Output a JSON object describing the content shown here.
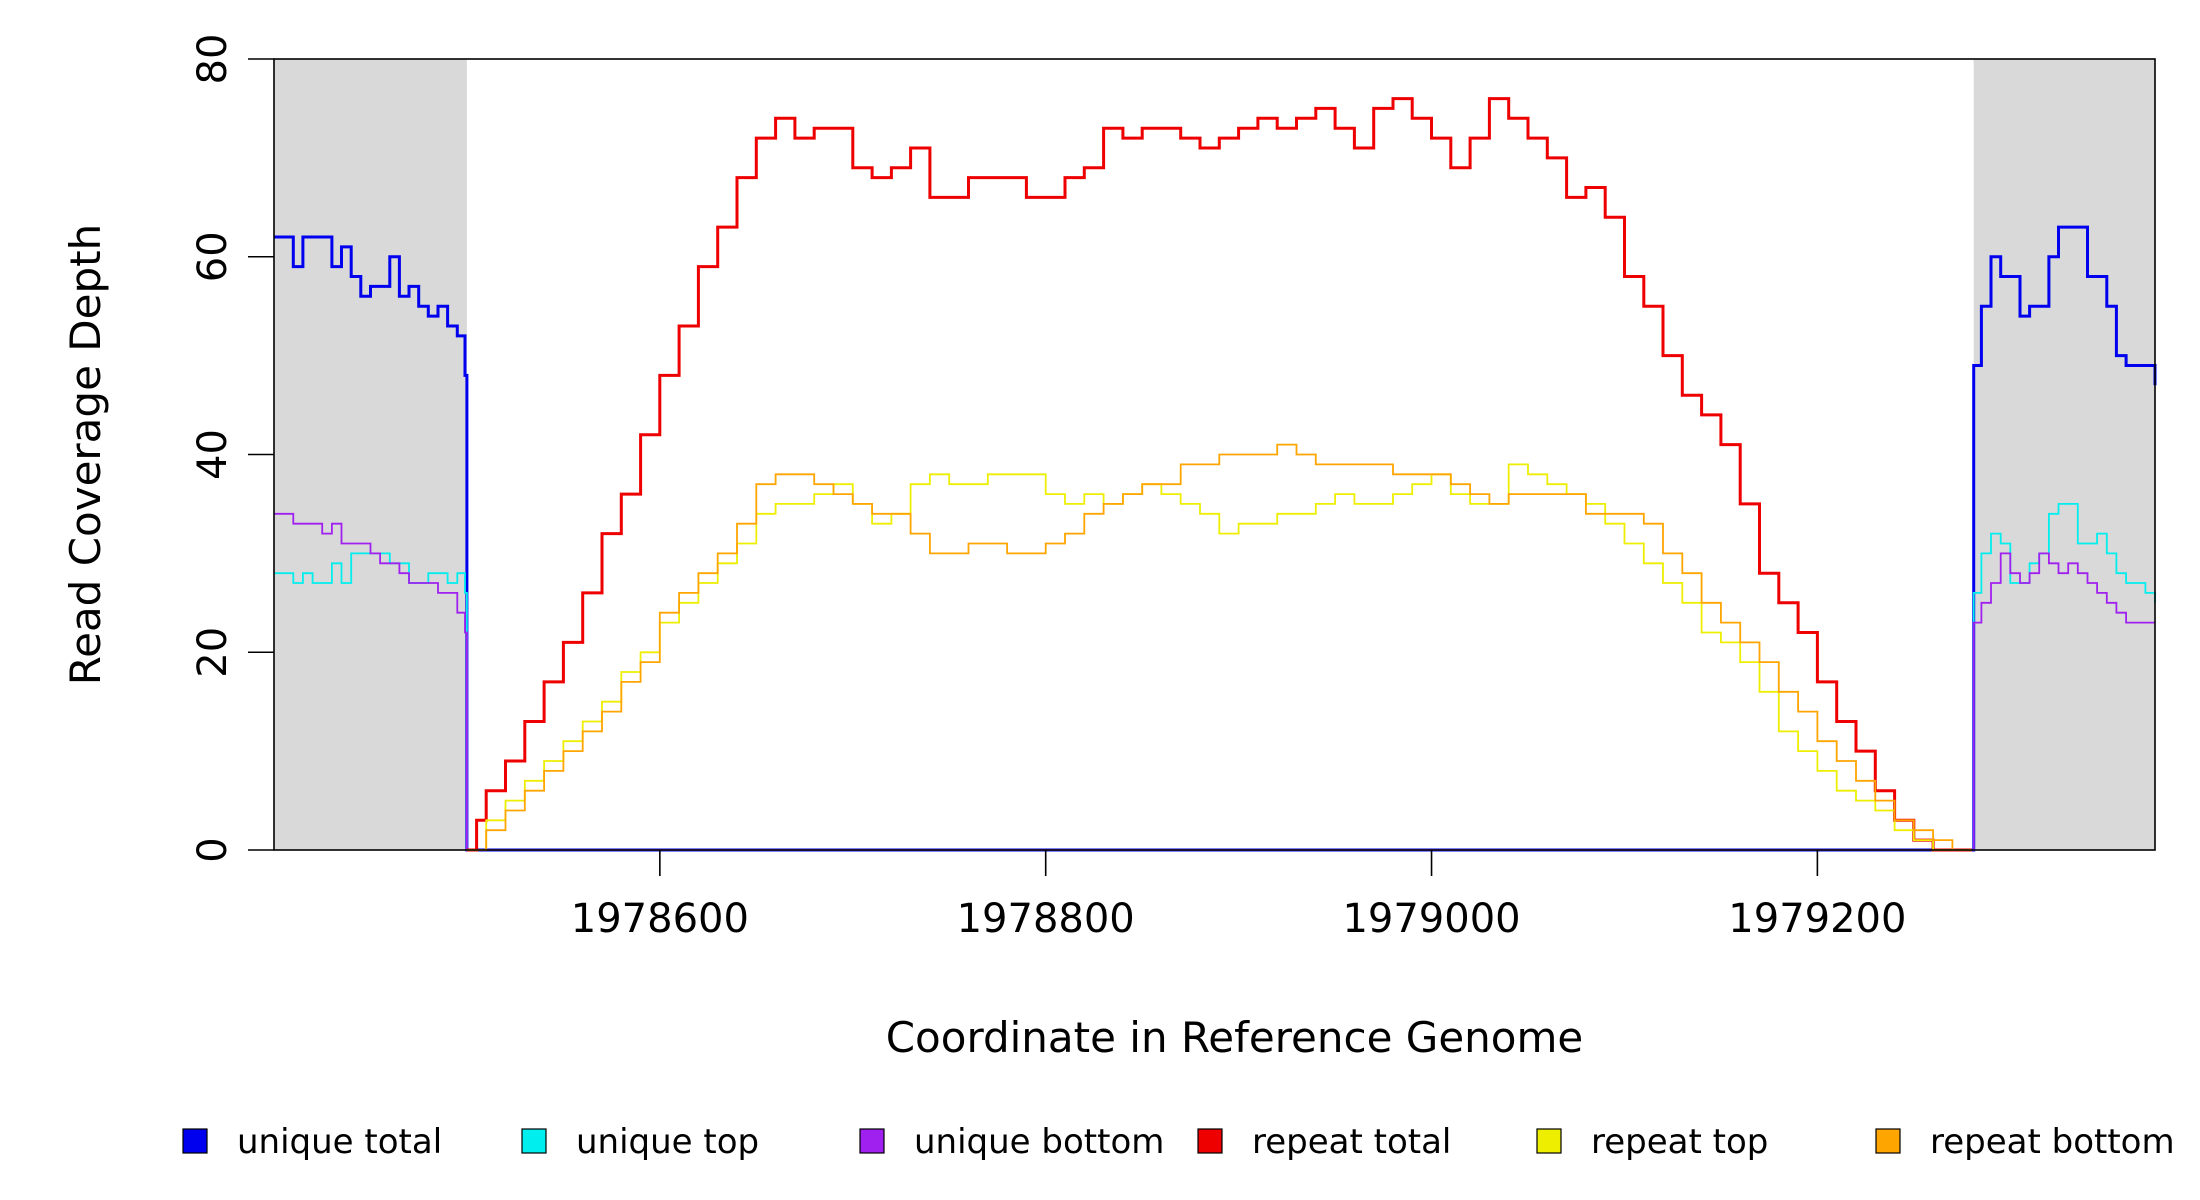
{
  "chart_data": {
    "type": "line",
    "title": "",
    "xlabel": "Coordinate in Reference Genome",
    "ylabel": "Read Coverage Depth",
    "xlim": [
      1978400,
      1979375
    ],
    "ylim": [
      0,
      80
    ],
    "x_ticks": [
      1978600,
      1978800,
      1979000,
      1979200
    ],
    "y_ticks": [
      0,
      20,
      40,
      60,
      80
    ],
    "x_tick_labels": [
      "1978600",
      "1978800",
      "1979000",
      "1979200"
    ],
    "y_tick_labels": [
      "0",
      "20",
      "40",
      "60",
      "80"
    ],
    "shaded_regions": [
      {
        "x_start": 1978400,
        "x_end": 1978500,
        "color": "#d9d9d9"
      },
      {
        "x_start": 1979281,
        "x_end": 1979375,
        "color": "#d9d9d9"
      }
    ],
    "grid": false,
    "legend_position": "bottom",
    "series": [
      {
        "name": "unique total",
        "color": "#0000ee",
        "x": [
          1978400,
          1978405,
          1978410,
          1978415,
          1978425,
          1978430,
          1978435,
          1978440,
          1978445,
          1978450,
          1978460,
          1978465,
          1978470,
          1978475,
          1978480,
          1978485,
          1978490,
          1978495,
          1978499,
          1978500,
          1979280,
          1979281,
          1979285,
          1979290,
          1979295,
          1979305,
          1979310,
          1979320,
          1979325,
          1979330,
          1979340,
          1979345,
          1979350,
          1979355,
          1979360,
          1979365,
          1979370,
          1979375
        ],
        "y": [
          62,
          62,
          59,
          62,
          62,
          59,
          61,
          58,
          56,
          57,
          60,
          56,
          57,
          55,
          54,
          55,
          53,
          52,
          48,
          0,
          0,
          49,
          55,
          60,
          58,
          54,
          55,
          60,
          63,
          63,
          58,
          58,
          55,
          50,
          49,
          49,
          49,
          47
        ]
      },
      {
        "name": "unique top",
        "color": "#00eeee",
        "x": [
          1978400,
          1978405,
          1978410,
          1978415,
          1978420,
          1978430,
          1978435,
          1978440,
          1978450,
          1978460,
          1978470,
          1978480,
          1978490,
          1978495,
          1978499,
          1978500,
          1979280,
          1979281,
          1979285,
          1979290,
          1979295,
          1979300,
          1979305,
          1979310,
          1979315,
          1979320,
          1979325,
          1979330,
          1979335,
          1979340,
          1979345,
          1979350,
          1979355,
          1979360,
          1979365,
          1979370,
          1979375
        ],
        "y": [
          28,
          28,
          27,
          28,
          27,
          29,
          27,
          30,
          30,
          29,
          27,
          28,
          27,
          28,
          26,
          0,
          0,
          26,
          30,
          32,
          31,
          27,
          27,
          29,
          30,
          34,
          35,
          35,
          31,
          31,
          32,
          30,
          28,
          27,
          27,
          26,
          25
        ]
      },
      {
        "name": "unique bottom",
        "color": "#a020f0",
        "x": [
          1978400,
          1978405,
          1978410,
          1978420,
          1978425,
          1978430,
          1978435,
          1978440,
          1978450,
          1978455,
          1978460,
          1978465,
          1978470,
          1978480,
          1978485,
          1978490,
          1978495,
          1978499,
          1978500,
          1979280,
          1979281,
          1979285,
          1979290,
          1979295,
          1979300,
          1979305,
          1979310,
          1979315,
          1979320,
          1979325,
          1979330,
          1979335,
          1979340,
          1979345,
          1979350,
          1979355,
          1979360,
          1979365,
          1979370,
          1979375
        ],
        "y": [
          34,
          34,
          33,
          33,
          32,
          33,
          31,
          31,
          30,
          29,
          29,
          28,
          27,
          27,
          26,
          26,
          24,
          22,
          0,
          0,
          23,
          25,
          27,
          30,
          28,
          27,
          28,
          30,
          29,
          28,
          29,
          28,
          27,
          26,
          25,
          24,
          23,
          23,
          23,
          23
        ]
      },
      {
        "name": "repeat total",
        "color": "#ee0000",
        "x": [
          1978500,
          1978505,
          1978510,
          1978520,
          1978530,
          1978540,
          1978550,
          1978560,
          1978570,
          1978580,
          1978590,
          1978600,
          1978610,
          1978620,
          1978630,
          1978640,
          1978650,
          1978660,
          1978670,
          1978680,
          1978690,
          1978700,
          1978710,
          1978720,
          1978730,
          1978740,
          1978750,
          1978760,
          1978770,
          1978780,
          1978790,
          1978800,
          1978810,
          1978820,
          1978830,
          1978840,
          1978850,
          1978860,
          1978870,
          1978880,
          1978890,
          1978900,
          1978910,
          1978920,
          1978930,
          1978940,
          1978950,
          1978960,
          1978970,
          1978980,
          1978990,
          1979000,
          1979010,
          1979020,
          1979030,
          1979040,
          1979050,
          1979060,
          1979070,
          1979080,
          1979090,
          1979100,
          1979110,
          1979120,
          1979130,
          1979140,
          1979150,
          1979160,
          1979170,
          1979180,
          1979190,
          1979200,
          1979210,
          1979220,
          1979230,
          1979240,
          1979250,
          1979260,
          1979270,
          1979278,
          1979280
        ],
        "y": [
          0,
          3,
          6,
          9,
          13,
          17,
          21,
          26,
          32,
          36,
          42,
          48,
          53,
          59,
          63,
          68,
          72,
          74,
          72,
          73,
          73,
          69,
          68,
          69,
          71,
          66,
          66,
          68,
          68,
          68,
          66,
          66,
          68,
          69,
          73,
          72,
          73,
          73,
          72,
          71,
          72,
          73,
          74,
          73,
          74,
          75,
          73,
          71,
          75,
          76,
          74,
          72,
          69,
          72,
          76,
          74,
          72,
          70,
          66,
          67,
          64,
          58,
          55,
          50,
          46,
          44,
          41,
          35,
          28,
          25,
          22,
          17,
          13,
          10,
          6,
          3,
          1,
          0,
          0,
          0,
          0
        ]
      },
      {
        "name": "repeat top",
        "color": "#eeee00",
        "x": [
          1978500,
          1978510,
          1978520,
          1978530,
          1978540,
          1978550,
          1978560,
          1978570,
          1978580,
          1978590,
          1978600,
          1978610,
          1978620,
          1978630,
          1978640,
          1978650,
          1978660,
          1978670,
          1978680,
          1978690,
          1978700,
          1978710,
          1978720,
          1978730,
          1978740,
          1978750,
          1978760,
          1978770,
          1978780,
          1978790,
          1978800,
          1978810,
          1978820,
          1978830,
          1978840,
          1978850,
          1978860,
          1978870,
          1978880,
          1978890,
          1978900,
          1978910,
          1978920,
          1978930,
          1978940,
          1978950,
          1978960,
          1978970,
          1978980,
          1978990,
          1979000,
          1979010,
          1979020,
          1979030,
          1979040,
          1979050,
          1979060,
          1979070,
          1979080,
          1979090,
          1979100,
          1979110,
          1979120,
          1979130,
          1979140,
          1979150,
          1979160,
          1979170,
          1979180,
          1979190,
          1979200,
          1979210,
          1979220,
          1979230,
          1979240,
          1979250,
          1979260,
          1979270,
          1979278,
          1979280
        ],
        "y": [
          0,
          3,
          5,
          7,
          9,
          11,
          13,
          15,
          18,
          20,
          23,
          25,
          27,
          29,
          31,
          34,
          35,
          35,
          36,
          37,
          35,
          33,
          34,
          37,
          38,
          37,
          37,
          38,
          38,
          38,
          36,
          35,
          36,
          35,
          36,
          37,
          36,
          35,
          34,
          32,
          33,
          33,
          34,
          34,
          35,
          36,
          35,
          35,
          36,
          37,
          38,
          36,
          35,
          35,
          39,
          38,
          37,
          36,
          35,
          33,
          31,
          29,
          27,
          25,
          22,
          21,
          19,
          16,
          12,
          10,
          8,
          6,
          5,
          4,
          2,
          1,
          0,
          0,
          0,
          0
        ]
      },
      {
        "name": "repeat bottom",
        "color": "#ffa500",
        "x": [
          1978500,
          1978510,
          1978520,
          1978530,
          1978540,
          1978550,
          1978560,
          1978570,
          1978580,
          1978590,
          1978600,
          1978610,
          1978620,
          1978630,
          1978640,
          1978650,
          1978660,
          1978670,
          1978680,
          1978690,
          1978700,
          1978710,
          1978720,
          1978730,
          1978740,
          1978750,
          1978760,
          1978770,
          1978780,
          1978790,
          1978800,
          1978810,
          1978820,
          1978830,
          1978840,
          1978850,
          1978860,
          1978870,
          1978880,
          1978890,
          1978900,
          1978910,
          1978920,
          1978930,
          1978940,
          1978950,
          1978960,
          1978970,
          1978980,
          1978990,
          1979000,
          1979010,
          1979020,
          1979030,
          1979040,
          1979050,
          1979060,
          1979070,
          1979080,
          1979090,
          1979100,
          1979110,
          1979120,
          1979130,
          1979140,
          1979150,
          1979160,
          1979170,
          1979180,
          1979190,
          1979200,
          1979210,
          1979220,
          1979230,
          1979240,
          1979250,
          1979260,
          1979270,
          1979278,
          1979280
        ],
        "y": [
          0,
          2,
          4,
          6,
          8,
          10,
          12,
          14,
          17,
          19,
          24,
          26,
          28,
          30,
          33,
          37,
          38,
          38,
          37,
          36,
          35,
          34,
          34,
          32,
          30,
          30,
          31,
          31,
          30,
          30,
          31,
          32,
          34,
          35,
          36,
          37,
          37,
          39,
          39,
          40,
          40,
          40,
          41,
          40,
          39,
          39,
          39,
          39,
          38,
          38,
          38,
          37,
          36,
          35,
          36,
          36,
          36,
          36,
          34,
          34,
          34,
          33,
          30,
          28,
          25,
          23,
          21,
          19,
          16,
          14,
          11,
          9,
          7,
          5,
          3,
          2,
          1,
          0,
          0,
          0
        ]
      }
    ]
  }
}
